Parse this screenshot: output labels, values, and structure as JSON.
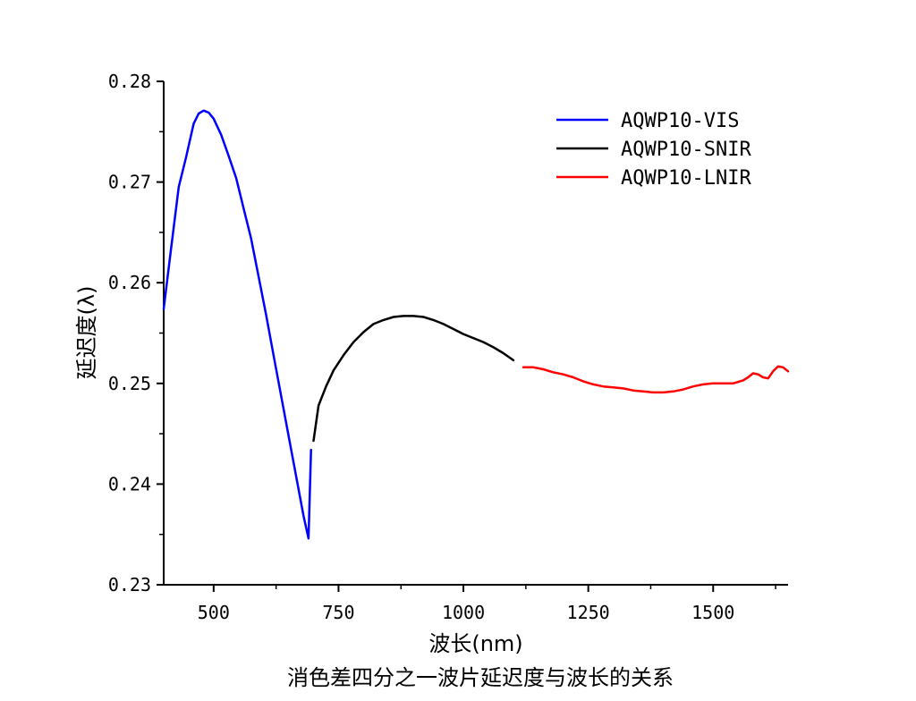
{
  "chart_data": {
    "type": "line",
    "title": "消色差四分之一波片延迟度与波长的关系",
    "xlabel": "波长(nm)",
    "ylabel": "延迟度(λ)",
    "xlim": [
      400,
      1650
    ],
    "ylim": [
      0.23,
      0.28
    ],
    "xticks": [
      500,
      750,
      1000,
      1250,
      1500
    ],
    "xtick_labels": [
      "500",
      "750",
      "1000",
      "1250",
      "1500"
    ],
    "yticks": [
      0.23,
      0.24,
      0.25,
      0.26,
      0.27,
      0.28
    ],
    "ytick_labels": [
      "0.23",
      "0.24",
      "0.25",
      "0.26",
      "0.27",
      "0.28"
    ],
    "legend_position": "top-right",
    "series": [
      {
        "name": "AQWP10-VIS",
        "color": "#0000ff",
        "x": [
          400,
          415,
          430,
          445,
          460,
          470,
          480,
          490,
          500,
          515,
          530,
          545,
          560,
          575,
          590,
          605,
          620,
          635,
          650,
          665,
          680,
          690,
          695
        ],
        "y": [
          0.2574,
          0.2635,
          0.2695,
          0.2725,
          0.2758,
          0.2768,
          0.2771,
          0.2769,
          0.2763,
          0.2747,
          0.2726,
          0.2704,
          0.2674,
          0.2644,
          0.2606,
          0.2568,
          0.2528,
          0.2488,
          0.2448,
          0.2408,
          0.2368,
          0.2346,
          0.2434
        ]
      },
      {
        "name": "AQWP10-SNIR",
        "color": "#000000",
        "x": [
          700,
          710,
          725,
          740,
          760,
          780,
          800,
          820,
          840,
          860,
          880,
          900,
          920,
          940,
          960,
          980,
          1000,
          1020,
          1040,
          1060,
          1080,
          1100
        ],
        "y": [
          0.2443,
          0.2478,
          0.2497,
          0.2513,
          0.2528,
          0.2541,
          0.2551,
          0.2559,
          0.2563,
          0.2566,
          0.2567,
          0.2567,
          0.2566,
          0.2563,
          0.2559,
          0.2554,
          0.2549,
          0.2545,
          0.2541,
          0.2536,
          0.253,
          0.2523
        ]
      },
      {
        "name": "AQWP10-LNIR",
        "color": "#ff0000",
        "x": [
          1120,
          1140,
          1160,
          1180,
          1200,
          1220,
          1240,
          1260,
          1280,
          1300,
          1320,
          1340,
          1360,
          1380,
          1400,
          1420,
          1440,
          1460,
          1480,
          1500,
          1520,
          1540,
          1560,
          1570,
          1580,
          1590,
          1600,
          1610,
          1620,
          1630,
          1640,
          1650
        ],
        "y": [
          0.2516,
          0.2516,
          0.2514,
          0.2511,
          0.2509,
          0.2506,
          0.2502,
          0.2499,
          0.2497,
          0.2496,
          0.2495,
          0.2493,
          0.2492,
          0.2491,
          0.2491,
          0.2492,
          0.2494,
          0.2497,
          0.2499,
          0.25,
          0.25,
          0.25,
          0.2503,
          0.2506,
          0.251,
          0.2509,
          0.2506,
          0.2505,
          0.2512,
          0.2517,
          0.2516,
          0.2512
        ]
      }
    ]
  }
}
